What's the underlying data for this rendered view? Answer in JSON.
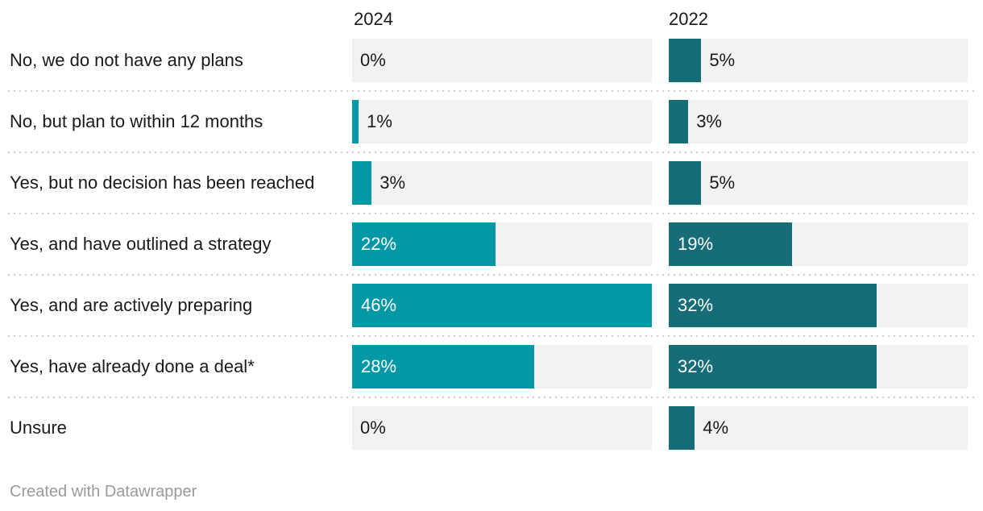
{
  "rows": [
    {
      "2024": "0%",
      "2022": "5%"
    },
    {
      "2024": "1%",
      "2022": "3%"
    },
    {
      "2024": "3%",
      "2022": "5%"
    },
    {
      "2024": "22%",
      "2022": "19%"
    },
    {
      "2024": "46%",
      "2022": "32%"
    },
    {
      "2024": "28%",
      "2022": "32%"
    },
    {
      "2024": "0%",
      "2022": "4%"
    }
  ],
  "footer": {
    "attribution": "Created with Datawrapper"
  },
  "colors": {
    "series_2024": "#0098a4",
    "series_2022": "#166d78",
    "track": "#f2f2f2",
    "text": "#1a1a1a",
    "value_inside_text": "#ffffff",
    "separator": "#cdcdcd",
    "footer_text": "#9b9b9b"
  },
  "chart_data": {
    "type": "bar",
    "orientation": "horizontal",
    "title": "",
    "categories": [
      "No, we do not have any plans",
      "No, but plan to within 12 months",
      "Yes, but no decision has been reached",
      "Yes, and have outlined a strategy",
      "Yes, and are actively preparing",
      "Yes, have already done a deal*",
      "Unsure"
    ],
    "series": [
      {
        "name": "2024",
        "values": [
          0,
          1,
          3,
          22,
          46,
          28,
          0
        ],
        "color": "#0098a4"
      },
      {
        "name": "2022",
        "values": [
          5,
          3,
          5,
          19,
          32,
          32,
          4
        ],
        "color": "#166d78"
      }
    ],
    "value_suffix": "%",
    "xlim": [
      0,
      46
    ],
    "grid": false,
    "legend_position": "column-headers",
    "label_placement_threshold": 10
  }
}
